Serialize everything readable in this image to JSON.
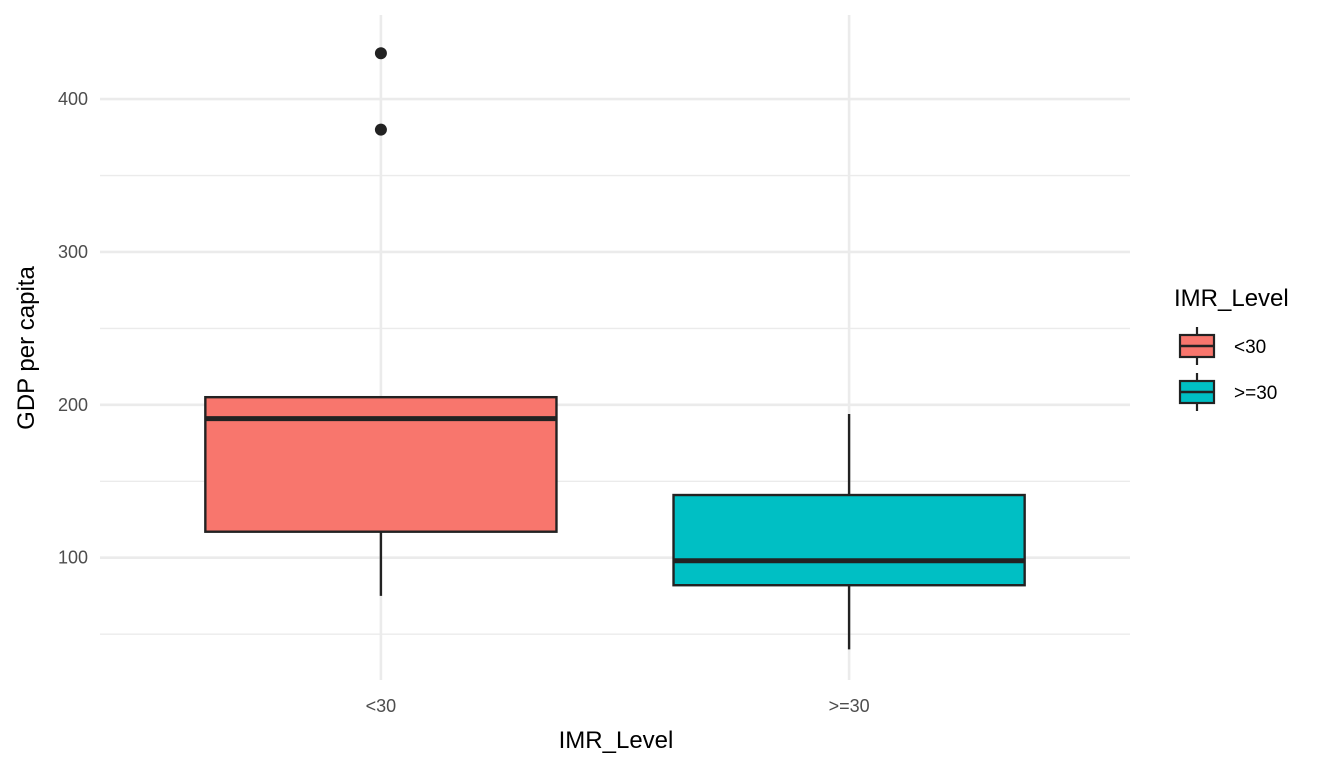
{
  "chart_data": {
    "type": "boxplot",
    "xlabel": "IMR_Level",
    "ylabel": "GDP per capita",
    "ylim": [
      20,
      455
    ],
    "y_ticks": [
      100,
      200,
      300,
      400
    ],
    "y_minor_ticks": [
      50,
      150,
      250,
      350
    ],
    "grid": true,
    "categories": [
      "<30",
      ">=30"
    ],
    "boxes": [
      {
        "category": "<30",
        "min": 75,
        "q1": 117,
        "median": 191,
        "q3": 205,
        "max": 205,
        "outliers": [
          380,
          430
        ],
        "color": "#F8766D"
      },
      {
        "category": ">=30",
        "min": 40,
        "q1": 82,
        "median": 98,
        "q3": 141,
        "max": 194,
        "outliers": [],
        "color": "#00BFC4"
      }
    ],
    "legend": {
      "title": "IMR_Level",
      "placement": "right",
      "entries": [
        {
          "label": "<30",
          "color": "#F8766D"
        },
        {
          "label": ">=30",
          "color": "#00BFC4"
        }
      ]
    }
  }
}
